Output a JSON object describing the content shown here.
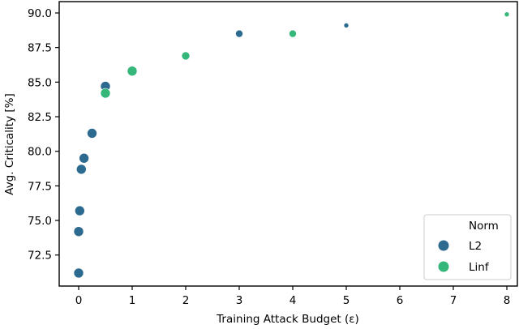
{
  "chart_data": {
    "type": "scatter",
    "title": "",
    "xlabel": "Training Attack Budget (ε)",
    "ylabel": "Avg. Criticality [%]",
    "xlim": [
      -0.35,
      8.2
    ],
    "ylim": [
      70.9,
      90.8
    ],
    "xticks": [
      0,
      1,
      2,
      3,
      4,
      5,
      6,
      7,
      8
    ],
    "yticks": [
      72.5,
      75.0,
      77.5,
      80.0,
      82.5,
      85.0,
      87.5,
      90.0
    ],
    "ytick_labels": [
      "72.5",
      "75.0",
      "77.5",
      "80.0",
      "82.5",
      "85.0",
      "87.5",
      "90.0"
    ],
    "grid": false,
    "legend": {
      "title": "Norm",
      "position": "lower right",
      "entries": [
        "L2",
        "Linf"
      ]
    },
    "series": [
      {
        "name": "L2",
        "color": "#2d6a8f",
        "points": [
          {
            "x": 0.0,
            "y": 71.2,
            "size": 11
          },
          {
            "x": 0.0,
            "y": 74.2,
            "size": 11
          },
          {
            "x": 0.02,
            "y": 75.7,
            "size": 11
          },
          {
            "x": 0.05,
            "y": 78.7,
            "size": 11
          },
          {
            "x": 0.1,
            "y": 79.5,
            "size": 11
          },
          {
            "x": 0.25,
            "y": 81.3,
            "size": 11
          },
          {
            "x": 0.5,
            "y": 84.7,
            "size": 11
          },
          {
            "x": 3.0,
            "y": 88.5,
            "size": 8
          },
          {
            "x": 5.0,
            "y": 89.1,
            "size": 5
          }
        ]
      },
      {
        "name": "Linf",
        "color": "#35b779",
        "points": [
          {
            "x": 0.5,
            "y": 84.2,
            "size": 11
          },
          {
            "x": 1.0,
            "y": 85.8,
            "size": 11
          },
          {
            "x": 2.0,
            "y": 86.9,
            "size": 9
          },
          {
            "x": 4.0,
            "y": 88.5,
            "size": 8
          },
          {
            "x": 8.0,
            "y": 89.9,
            "size": 5
          }
        ]
      }
    ]
  }
}
